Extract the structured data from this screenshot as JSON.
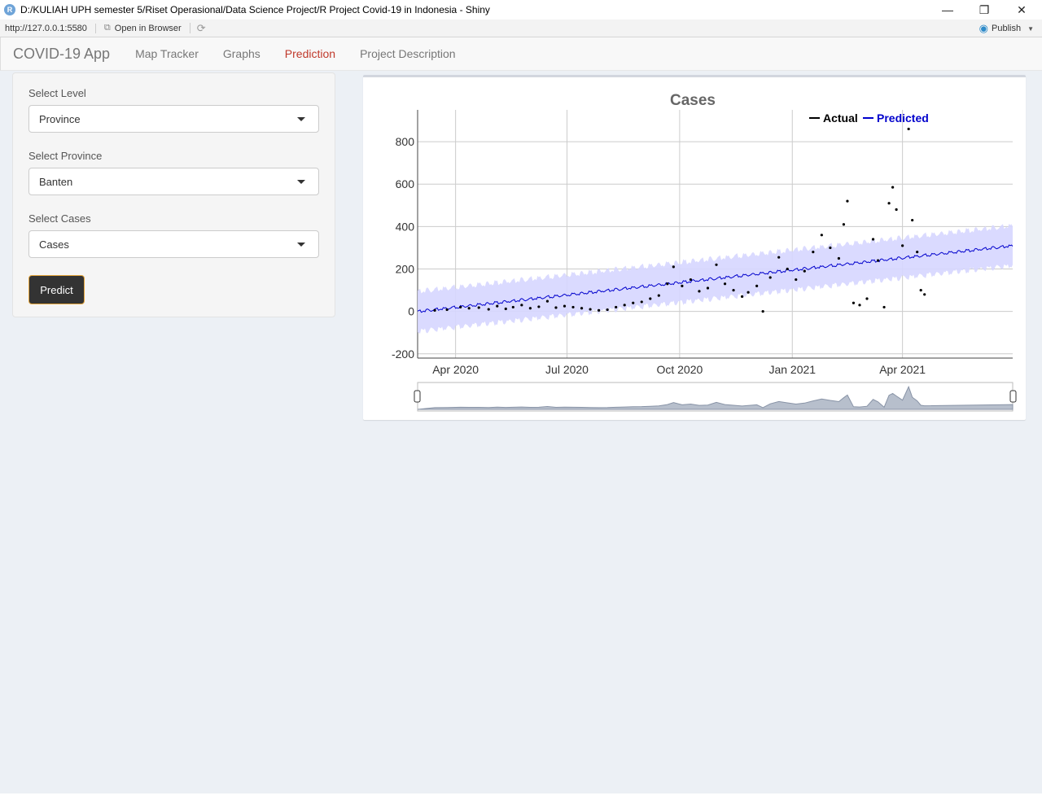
{
  "window": {
    "title": "D:/KULIAH UPH semester 5/Riset Operasional/Data Science Project/R Project Covid-19 in Indonesia - Shiny",
    "app_icon_letter": "R",
    "minimize_glyph": "—",
    "restore_glyph": "❐",
    "close_glyph": "✕"
  },
  "addressbar": {
    "url": "http://127.0.0.1:5580",
    "open_in_browser_label": "Open in Browser",
    "publish_label": "Publish"
  },
  "navbar": {
    "brand": "COVID-19 App",
    "tabs": [
      {
        "label": "Map Tracker"
      },
      {
        "label": "Graphs"
      },
      {
        "label": "Prediction",
        "active": true
      },
      {
        "label": "Project Description"
      }
    ],
    "active_color": "#c0392b"
  },
  "sidebar": {
    "level": {
      "label": "Select Level",
      "value": "Province"
    },
    "province": {
      "label": "Select Province",
      "value": "Banten"
    },
    "cases": {
      "label": "Select Cases",
      "value": "Cases"
    },
    "predict_label": "Predict"
  },
  "chart_data": {
    "type": "line",
    "title": "Cases",
    "xlabel": "",
    "ylabel": "",
    "x_range": [
      "2020-03-01",
      "2021-06-30"
    ],
    "ylim": [
      -220,
      950
    ],
    "y_ticks": [
      -200,
      0,
      200,
      400,
      600,
      800
    ],
    "x_ticks": [
      {
        "label": "Apr 2020",
        "date": "2020-04-01"
      },
      {
        "label": "Jul 2020",
        "date": "2020-07-01"
      },
      {
        "label": "Oct 2020",
        "date": "2020-10-01"
      },
      {
        "label": "Jan 2021",
        "date": "2021-01-01"
      },
      {
        "label": "Apr 2021",
        "date": "2021-04-01"
      }
    ],
    "grid": true,
    "legend_position": "top-right",
    "range_slider": true,
    "series": [
      {
        "name": "Actual",
        "color": "#000000",
        "mode": "markers",
        "points": [
          [
            "2020-03-15",
            5
          ],
          [
            "2020-03-25",
            8
          ],
          [
            "2020-04-05",
            20
          ],
          [
            "2020-04-12",
            15
          ],
          [
            "2020-04-20",
            18
          ],
          [
            "2020-04-28",
            10
          ],
          [
            "2020-05-05",
            25
          ],
          [
            "2020-05-12",
            12
          ],
          [
            "2020-05-18",
            20
          ],
          [
            "2020-05-25",
            30
          ],
          [
            "2020-06-01",
            15
          ],
          [
            "2020-06-08",
            22
          ],
          [
            "2020-06-15",
            48
          ],
          [
            "2020-06-22",
            18
          ],
          [
            "2020-06-29",
            25
          ],
          [
            "2020-07-06",
            20
          ],
          [
            "2020-07-13",
            15
          ],
          [
            "2020-07-20",
            10
          ],
          [
            "2020-07-27",
            5
          ],
          [
            "2020-08-03",
            8
          ],
          [
            "2020-08-10",
            20
          ],
          [
            "2020-08-17",
            30
          ],
          [
            "2020-08-24",
            40
          ],
          [
            "2020-08-31",
            45
          ],
          [
            "2020-09-07",
            60
          ],
          [
            "2020-09-14",
            75
          ],
          [
            "2020-09-21",
            130
          ],
          [
            "2020-09-26",
            210
          ],
          [
            "2020-10-03",
            120
          ],
          [
            "2020-10-10",
            150
          ],
          [
            "2020-10-17",
            95
          ],
          [
            "2020-10-24",
            110
          ],
          [
            "2020-10-31",
            220
          ],
          [
            "2020-11-07",
            130
          ],
          [
            "2020-11-14",
            100
          ],
          [
            "2020-11-21",
            70
          ],
          [
            "2020-11-26",
            90
          ],
          [
            "2020-12-03",
            120
          ],
          [
            "2020-12-08",
            0
          ],
          [
            "2020-12-14",
            160
          ],
          [
            "2020-12-21",
            255
          ],
          [
            "2020-12-28",
            200
          ],
          [
            "2021-01-04",
            150
          ],
          [
            "2021-01-11",
            190
          ],
          [
            "2021-01-18",
            280
          ],
          [
            "2021-01-25",
            360
          ],
          [
            "2021-02-01",
            300
          ],
          [
            "2021-02-08",
            250
          ],
          [
            "2021-02-12",
            410
          ],
          [
            "2021-02-15",
            520
          ],
          [
            "2021-02-20",
            40
          ],
          [
            "2021-02-25",
            30
          ],
          [
            "2021-03-03",
            60
          ],
          [
            "2021-03-08",
            340
          ],
          [
            "2021-03-12",
            240
          ],
          [
            "2021-03-17",
            20
          ],
          [
            "2021-03-21",
            510
          ],
          [
            "2021-03-24",
            585
          ],
          [
            "2021-03-27",
            480
          ],
          [
            "2021-04-01",
            310
          ],
          [
            "2021-04-06",
            860
          ],
          [
            "2021-04-09",
            430
          ],
          [
            "2021-04-13",
            280
          ],
          [
            "2021-04-16",
            100
          ],
          [
            "2021-04-19",
            80
          ]
        ]
      },
      {
        "name": "Predicted",
        "color": "#0000cc",
        "mode": "lines",
        "start": 0,
        "end": 310,
        "band_halfwidth": 95,
        "band_color": "#d6d6ff"
      }
    ]
  }
}
